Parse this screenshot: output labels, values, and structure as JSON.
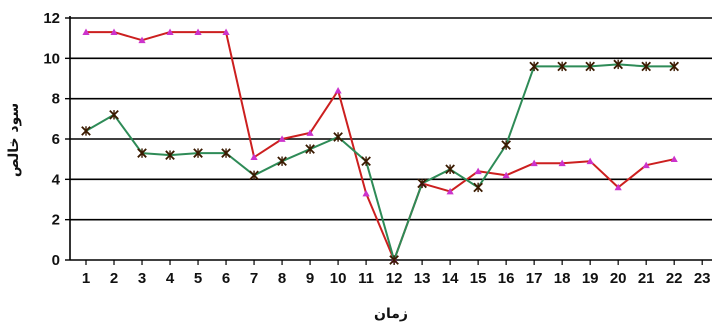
{
  "chart_data": {
    "type": "line",
    "title": "",
    "xlabel": "زمان",
    "ylabel": "سود خالص",
    "x_ticks": [
      1,
      2,
      3,
      4,
      5,
      6,
      7,
      8,
      9,
      10,
      11,
      12,
      13,
      14,
      15,
      16,
      17,
      18,
      19,
      20,
      21,
      22,
      23
    ],
    "y_ticks": [
      0,
      2,
      4,
      6,
      8,
      10,
      12
    ],
    "xlim": [
      1,
      23
    ],
    "ylim": [
      0,
      12
    ],
    "grid": "horizontal",
    "legend": "none",
    "series": [
      {
        "color": "#cc1f1f",
        "marker": "triangle",
        "marker_color": "#cc33cc",
        "x": [
          1,
          2,
          3,
          4,
          5,
          6,
          7,
          8,
          9,
          10,
          11,
          12,
          13,
          14,
          15,
          16,
          17,
          18,
          19,
          20,
          21,
          22
        ],
        "values": [
          11.3,
          11.3,
          10.9,
          11.3,
          11.3,
          11.3,
          5.1,
          6.0,
          6.3,
          8.4,
          3.3,
          0,
          3.8,
          3.4,
          4.4,
          4.2,
          4.8,
          4.8,
          4.9,
          3.6,
          4.7,
          5.0
        ]
      },
      {
        "color": "#2e8b57",
        "marker": "star",
        "marker_color": "#3a1a00",
        "x": [
          1,
          2,
          3,
          4,
          5,
          6,
          7,
          8,
          9,
          10,
          11,
          12,
          13,
          14,
          15,
          16,
          17,
          18,
          19,
          20,
          21,
          22
        ],
        "values": [
          6.4,
          7.2,
          5.3,
          5.2,
          5.3,
          5.3,
          4.2,
          4.9,
          5.5,
          6.1,
          4.9,
          0,
          3.8,
          4.5,
          3.6,
          5.7,
          9.6,
          9.6,
          9.6,
          9.7,
          9.6,
          9.6
        ]
      }
    ]
  }
}
